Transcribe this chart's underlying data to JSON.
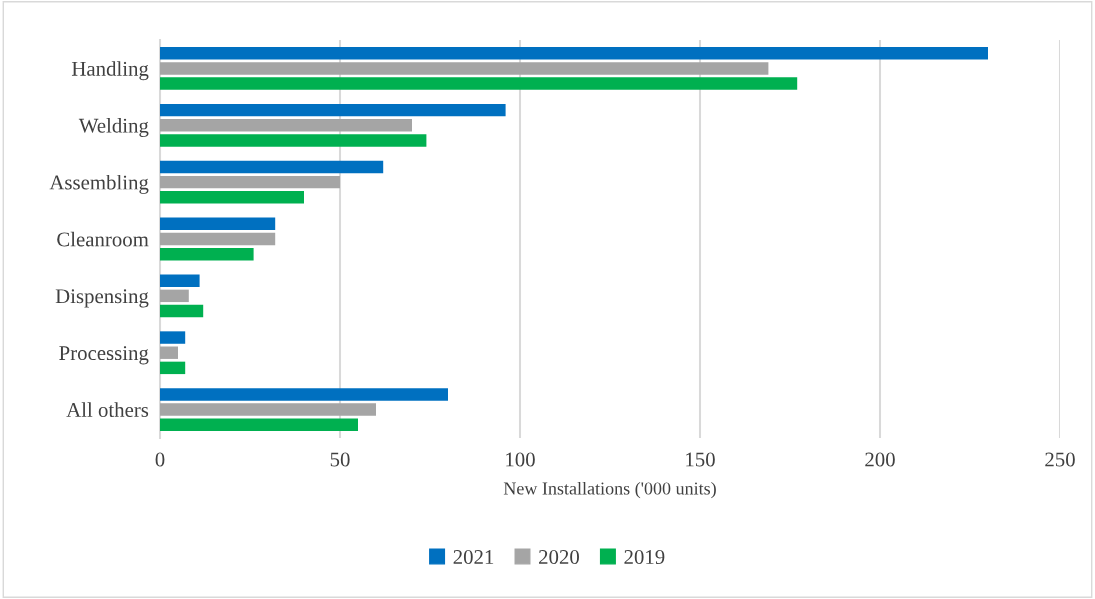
{
  "chart_data": {
    "type": "bar",
    "orientation": "horizontal",
    "xlabel": "New Installations ('000 units)",
    "categories": [
      "Handling",
      "Welding",
      "Assembling",
      "Cleanroom",
      "Dispensing",
      "Processing",
      "All others"
    ],
    "series": [
      {
        "name": "2021",
        "color": "#0070c0",
        "values": [
          230,
          96,
          62,
          32,
          11,
          7,
          80
        ]
      },
      {
        "name": "2020",
        "color": "#a5a5a5",
        "values": [
          169,
          70,
          50,
          32,
          8,
          5,
          60
        ]
      },
      {
        "name": "2019",
        "color": "#00b050",
        "values": [
          177,
          74,
          40,
          26,
          12,
          7,
          55
        ]
      }
    ],
    "xlim": [
      0,
      250
    ],
    "xticks": [
      0,
      50,
      100,
      150,
      200,
      250
    ],
    "grid": "x",
    "legend": "bottom"
  }
}
